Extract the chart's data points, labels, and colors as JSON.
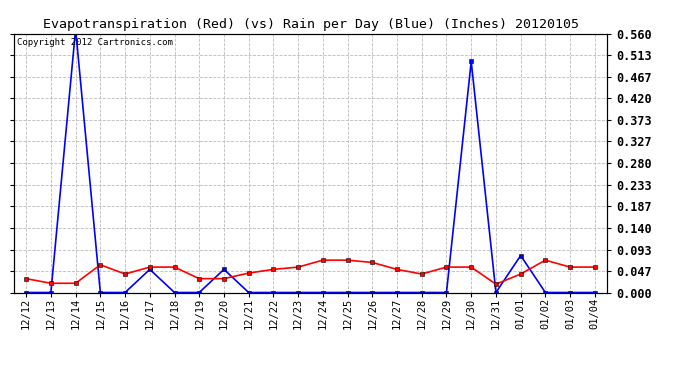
{
  "title": "Evapotranspiration (Red) (vs) Rain per Day (Blue) (Inches) 20120105",
  "copyright": "Copyright 2012 Cartronics.com",
  "background_color": "#ffffff",
  "plot_bg_color": "#ffffff",
  "grid_color": "#bbbbbb",
  "labels": [
    "12/12",
    "12/13",
    "12/14",
    "12/15",
    "12/16",
    "12/17",
    "12/18",
    "12/19",
    "12/20",
    "12/21",
    "12/22",
    "12/23",
    "12/24",
    "12/25",
    "12/26",
    "12/27",
    "12/28",
    "12/29",
    "12/30",
    "12/31",
    "01/01",
    "01/02",
    "01/03",
    "01/04"
  ],
  "rain": [
    0.0,
    0.0,
    0.57,
    0.0,
    0.0,
    0.05,
    0.0,
    0.0,
    0.05,
    0.0,
    0.0,
    0.0,
    0.0,
    0.0,
    0.0,
    0.0,
    0.0,
    0.0,
    0.5,
    0.0,
    0.08,
    0.0,
    0.0,
    0.0
  ],
  "et": [
    0.03,
    0.02,
    0.02,
    0.06,
    0.04,
    0.055,
    0.055,
    0.03,
    0.03,
    0.042,
    0.05,
    0.055,
    0.07,
    0.07,
    0.065,
    0.05,
    0.04,
    0.055,
    0.055,
    0.018,
    0.04,
    0.07,
    0.055,
    0.055
  ],
  "rain_color": "#0000ff",
  "et_color": "#ff0000",
  "marker": "s",
  "marker_size": 2.5,
  "line_width": 1.2,
  "ylim": [
    0.0,
    0.56
  ],
  "yticks": [
    0.0,
    0.047,
    0.093,
    0.14,
    0.187,
    0.233,
    0.28,
    0.327,
    0.373,
    0.42,
    0.467,
    0.513,
    0.56
  ],
  "title_fontsize": 9.5,
  "copyright_fontsize": 6.5,
  "tick_fontsize": 7.5,
  "ytick_fontsize": 8.5
}
